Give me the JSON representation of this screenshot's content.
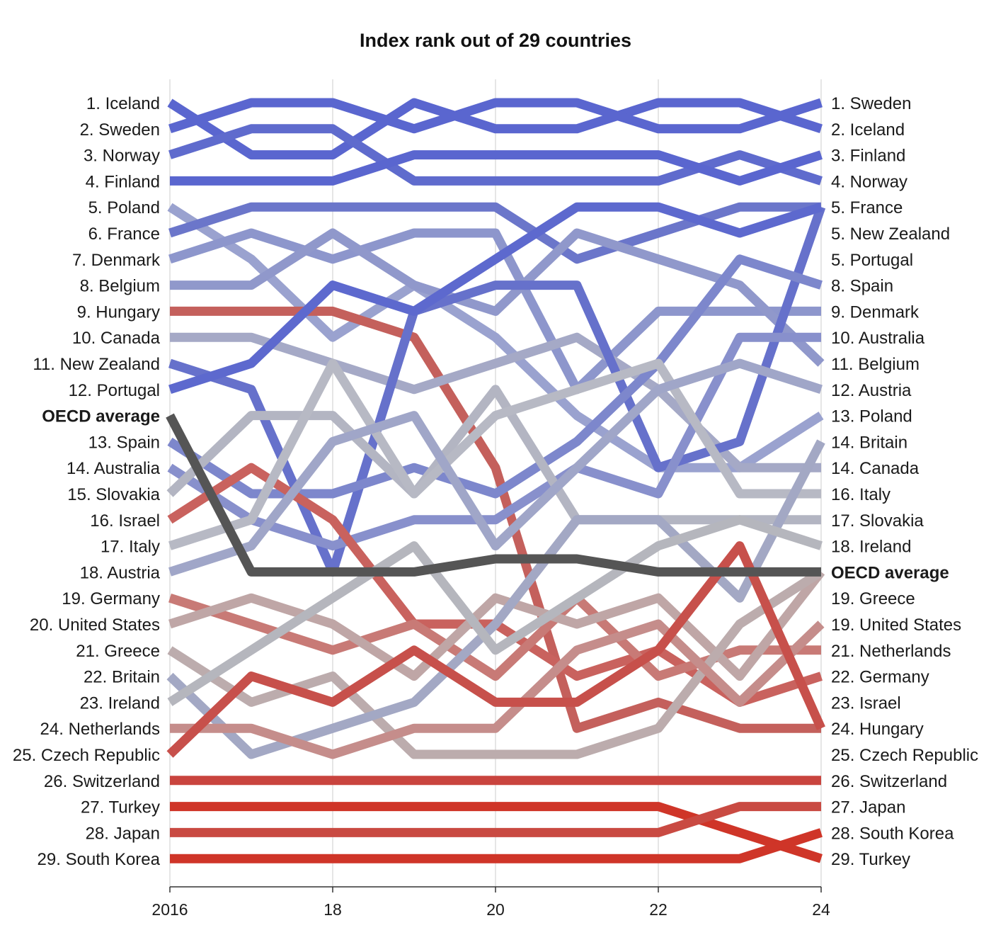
{
  "chart_data": {
    "type": "line",
    "title": "Index rank out of 29 countries",
    "x": [
      2016,
      2017,
      2018,
      2019,
      2020,
      2021,
      2022,
      2023,
      2024
    ],
    "x_tick_labels": [
      {
        "year": 2016,
        "label": "2016"
      },
      {
        "year": 2018,
        "label": "18"
      },
      {
        "year": 2020,
        "label": "20"
      },
      {
        "year": 2022,
        "label": "22"
      },
      {
        "year": 2024,
        "label": "24"
      }
    ],
    "y_reversed": true,
    "ylim": [
      1,
      30
    ],
    "grid": "vertical",
    "left_labels": [
      "1. Iceland",
      "2. Sweden",
      "3. Norway",
      "4. Finland",
      "5. Poland",
      "6. France",
      "7. Denmark",
      "8. Belgium",
      "9. Hungary",
      "10. Canada",
      "11. New Zealand",
      "12. Portugal",
      "OECD average",
      "13. Spain",
      "14. Australia",
      "15. Slovakia",
      "16. Israel",
      "17. Italy",
      "18. Austria",
      "19. Germany",
      "20. United States",
      "21. Greece",
      "22. Britain",
      "23. Ireland",
      "24. Netherlands",
      "25. Czech Republic",
      "26. Switzerland",
      "27. Turkey",
      "28. Japan",
      "29. South Korea"
    ],
    "right_labels": [
      "1. Sweden",
      "2. Iceland",
      "3. Finland",
      "4. Norway",
      "5. France",
      "5. New Zealand",
      "5. Portugal",
      "8. Spain",
      "9. Denmark",
      "10. Australia",
      "11. Belgium",
      "12. Austria",
      "13. Poland",
      "14. Britain",
      "14. Canada",
      "16. Italy",
      "17. Slovakia",
      "18. Ireland",
      "OECD average",
      "19. Greece",
      "19. United States",
      "21. Netherlands",
      "22. Germany",
      "23. Israel",
      "24. Hungary",
      "25. Czech Republic",
      "26. Switzerland",
      "27. Japan",
      "28. South Korea",
      "29. Turkey"
    ],
    "bold_labels": [
      "OECD average"
    ],
    "series": [
      {
        "name": "Iceland",
        "values": [
          1,
          3,
          3,
          1,
          2,
          2,
          1,
          1,
          2
        ],
        "color": "#5a66cf"
      },
      {
        "name": "Sweden",
        "values": [
          2,
          1,
          1,
          2,
          1,
          1,
          2,
          2,
          1
        ],
        "color": "#5a66cf"
      },
      {
        "name": "Norway",
        "values": [
          3,
          2,
          2,
          4,
          4,
          4,
          4,
          3,
          4
        ],
        "color": "#5f6bcd"
      },
      {
        "name": "Finland",
        "values": [
          4,
          4,
          4,
          3,
          3,
          3,
          3,
          4,
          3
        ],
        "color": "#5a66cf"
      },
      {
        "name": "Poland",
        "values": [
          5,
          7,
          10,
          8,
          10,
          13,
          15,
          15,
          13
        ],
        "color": "#9aa2cf"
      },
      {
        "name": "France",
        "values": [
          6,
          5,
          5,
          5,
          5,
          7,
          6,
          5,
          5
        ],
        "color": "#6b76ca"
      },
      {
        "name": "Denmark",
        "values": [
          7,
          6,
          7,
          6,
          6,
          12,
          9,
          9,
          9
        ],
        "color": "#8d96cc"
      },
      {
        "name": "Belgium",
        "values": [
          8,
          8,
          6,
          8,
          9,
          6,
          7,
          8,
          11
        ],
        "color": "#9098cb"
      },
      {
        "name": "Hungary",
        "values": [
          9,
          9,
          9,
          10,
          15,
          25,
          24,
          25,
          25
        ],
        "color": "#c4605c"
      },
      {
        "name": "Canada",
        "values": [
          10,
          10,
          11,
          12,
          11,
          10,
          12,
          15,
          15
        ],
        "color": "#a5a9c6"
      },
      {
        "name": "New Zealand",
        "values": [
          11,
          12,
          19,
          9,
          8,
          8,
          15,
          14,
          5
        ],
        "color": "#6671cb"
      },
      {
        "name": "Portugal",
        "values": [
          12,
          11,
          8,
          9,
          7,
          5,
          5,
          6,
          5
        ],
        "color": "#5d69ce"
      },
      {
        "name": "OECD average",
        "values": [
          13,
          19,
          19,
          19,
          18.5,
          18.5,
          19,
          19,
          19
        ],
        "color": "#555555"
      },
      {
        "name": "Spain",
        "values": [
          14,
          16,
          16,
          15,
          16,
          14,
          11,
          7,
          8
        ],
        "color": "#7d87cc"
      },
      {
        "name": "Australia",
        "values": [
          15,
          17,
          18,
          17,
          17,
          15,
          16,
          10,
          10
        ],
        "color": "#8890cc"
      },
      {
        "name": "Slovakia",
        "values": [
          16,
          13,
          13,
          16,
          12,
          17,
          17,
          17,
          17
        ],
        "color": "#b3b5c2"
      },
      {
        "name": "Israel",
        "values": [
          17,
          15,
          17,
          21,
          21,
          23,
          22,
          24,
          23
        ],
        "color": "#c9625e"
      },
      {
        "name": "Italy",
        "values": [
          18,
          17,
          11,
          16,
          13,
          12,
          11,
          16,
          16
        ],
        "color": "#b7b9c4"
      },
      {
        "name": "Austria",
        "values": [
          19,
          18,
          14,
          13,
          18,
          15,
          12,
          11,
          12
        ],
        "color": "#a0a6c8"
      },
      {
        "name": "Germany",
        "values": [
          20,
          21,
          22,
          21,
          23,
          20,
          23,
          22,
          22
        ],
        "color": "#c87a76"
      },
      {
        "name": "United States",
        "values": [
          21,
          20,
          21,
          23,
          20,
          21,
          20,
          23,
          19
        ],
        "color": "#bfa6a6"
      },
      {
        "name": "Greece",
        "values": [
          22,
          24,
          23,
          26,
          26,
          26,
          25,
          21,
          19
        ],
        "color": "#bcacad"
      },
      {
        "name": "Britain",
        "values": [
          23,
          26,
          25,
          24,
          21,
          17,
          17,
          20,
          14
        ],
        "color": "#a3a8c4"
      },
      {
        "name": "Ireland",
        "values": [
          24,
          22,
          20,
          18,
          22,
          20,
          18,
          17,
          18
        ],
        "color": "#b5b6bd"
      },
      {
        "name": "Netherlands",
        "values": [
          25,
          25,
          26,
          25,
          25,
          22,
          21,
          24,
          21
        ],
        "color": "#c58d8b"
      },
      {
        "name": "Czech Republic",
        "values": [
          26,
          23,
          24,
          22,
          24,
          24,
          22,
          18,
          25
        ],
        "color": "#c7504b"
      },
      {
        "name": "Switzerland",
        "values": [
          27,
          27,
          27,
          27,
          27,
          27,
          27,
          27,
          27
        ],
        "color": "#c9443e"
      },
      {
        "name": "Turkey",
        "values": [
          28,
          28,
          28,
          28,
          28,
          28,
          28,
          29,
          30
        ],
        "color": "#cf3528"
      },
      {
        "name": "Japan",
        "values": [
          29,
          29,
          29,
          29,
          29,
          29,
          29,
          28,
          28
        ],
        "color": "#c94a42"
      },
      {
        "name": "South Korea",
        "values": [
          30,
          30,
          30,
          30,
          30,
          30,
          30,
          30,
          29
        ],
        "color": "#cf3528"
      }
    ]
  }
}
